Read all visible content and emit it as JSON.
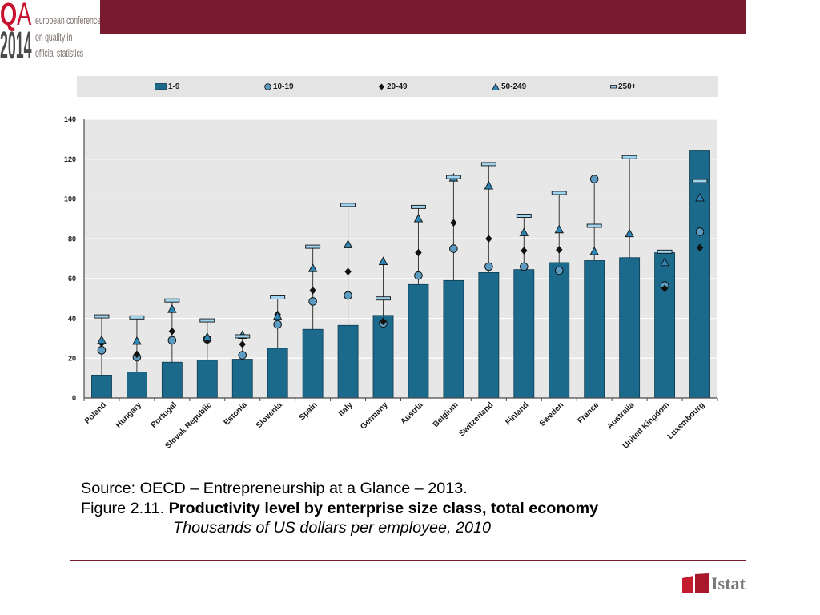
{
  "logo": {
    "letter_q": "Q",
    "letter_a": "A",
    "year": "2014",
    "lines": [
      "european conference",
      "on quality in",
      "official statistics"
    ]
  },
  "colors": {
    "banner": "#7a1a2f",
    "logo_red": "#c8102e",
    "plot_background": "#e7e7e7",
    "gridline": "#ffffff",
    "istat_red": "#c41e2e"
  },
  "chart_data": {
    "type": "bar",
    "title": "Productivity level by enterprise size class, total economy",
    "subtitle": "Thousands of US dollars per employee, 2010",
    "xlabel": "",
    "ylabel": "",
    "ylim": [
      0,
      140
    ],
    "yticks": [
      0,
      20,
      40,
      60,
      80,
      100,
      120,
      140
    ],
    "grid": true,
    "legend": "top",
    "categories": [
      "Poland",
      "Hungary",
      "Portugal",
      "Slovak Republic",
      "Estonia",
      "Slovenia",
      "Spain",
      "Italy",
      "Germany",
      "Austria",
      "Belgium",
      "Switzerland",
      "Finland",
      "Sweden",
      "France",
      "Australia",
      "United Kingdom",
      "Luxembourg"
    ],
    "series": [
      {
        "name": "1-9",
        "marker": "bar",
        "color": "#1b6a8c",
        "values": [
          11.5,
          13,
          18,
          19,
          19.5,
          25,
          34.5,
          36.5,
          41.5,
          57,
          59,
          63,
          64.5,
          68,
          69,
          70.5,
          73,
          124.5
        ]
      },
      {
        "name": "10-19",
        "marker": "circle",
        "color": "#5d9cc2",
        "values": [
          24,
          20.5,
          29,
          29.5,
          21.5,
          37,
          48.5,
          51.5,
          37.5,
          61.5,
          75,
          66,
          66,
          64,
          110,
          null,
          56.5,
          83.5
        ]
      },
      {
        "name": "20-49",
        "marker": "diamond",
        "color": "#111111",
        "values": [
          27.5,
          22,
          33.5,
          29,
          27,
          42,
          54,
          63.5,
          38.5,
          73,
          88,
          80,
          74,
          74.5,
          null,
          null,
          55,
          75.5
        ]
      },
      {
        "name": "50-249",
        "marker": "triangle",
        "color": "#2d86b5",
        "values": [
          29,
          28.5,
          44.5,
          30.5,
          31.5,
          41,
          65,
          77,
          68.5,
          90,
          110.5,
          106.5,
          83,
          84.5,
          73.5,
          82.5,
          68,
          100.5
        ]
      },
      {
        "name": "250+",
        "marker": "dash",
        "color": "#9fd3ee",
        "values": [
          41,
          40.5,
          49,
          39,
          31,
          50.5,
          76,
          97,
          50,
          96,
          111,
          117.5,
          91.5,
          103,
          86.5,
          121,
          73.5,
          109
        ]
      }
    ]
  },
  "caption": {
    "source": "Source: OECD – Entrepreneurship at a Glance – 2013.",
    "figure_label": "Figure 2.11."
  },
  "footer": {
    "brand": "Istat"
  }
}
